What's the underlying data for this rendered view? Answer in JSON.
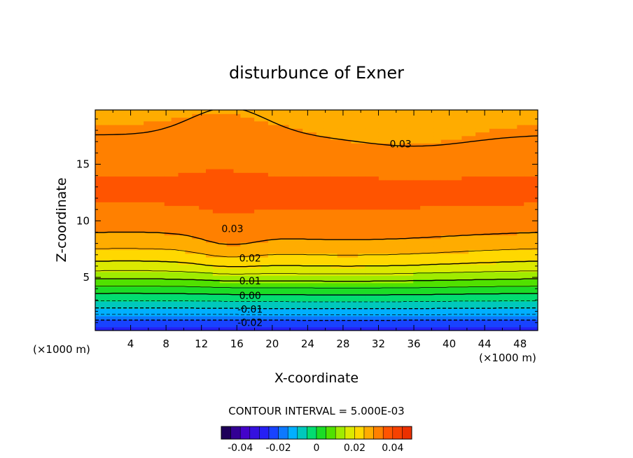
{
  "chart_data": {
    "type": "contour",
    "title": "disturbunce of Exner",
    "xlabel": "X-coordinate",
    "ylabel": "Z-coordinate",
    "x_unit_left": "(×1000 m)",
    "x_unit_right": "(×1000 m)",
    "xlim": [
      0,
      50
    ],
    "ylim": [
      0.3,
      19.8
    ],
    "x_ticks": [
      4,
      8,
      12,
      16,
      20,
      24,
      28,
      32,
      36,
      40,
      44,
      48
    ],
    "y_ticks": [
      5,
      10,
      15
    ],
    "contour_interval_text": "CONTOUR INTERVAL = 5.000E-03",
    "contour_interval": 0.005,
    "colorbar": {
      "range": [
        -0.05,
        0.05
      ],
      "tick_values": [
        -0.04,
        -0.02,
        0,
        0.02,
        0.04
      ],
      "tick_labels": [
        "-0.04",
        "-0.02",
        "0",
        "0.02",
        "0.04"
      ]
    },
    "contour_labels": [
      {
        "text": "0.03",
        "x": 34.5,
        "z": 16.8
      },
      {
        "text": "0.03",
        "x": 15.5,
        "z": 9.3
      },
      {
        "text": "0.02",
        "x": 17.5,
        "z": 6.7
      },
      {
        "text": "0.01",
        "x": 17.5,
        "z": 4.7
      },
      {
        "text": "0.00",
        "x": 17.5,
        "z": 3.4
      },
      {
        "text": "-0.01",
        "x": 17.5,
        "z": 2.2
      },
      {
        "text": "-0.02",
        "x": 17.5,
        "z": 1.0
      }
    ],
    "contour_levels_shown": [
      0.03,
      0.025,
      0.02,
      0.015,
      0.01,
      0.005,
      0.0,
      -0.005,
      -0.01,
      -0.015,
      -0.02
    ],
    "field_profile": {
      "description_z_km": [
        0.3,
        1,
        2,
        3,
        4,
        5,
        6,
        7,
        8,
        9,
        10,
        12,
        14,
        16,
        18,
        19.8
      ],
      "value_at_x0": [
        -0.03,
        -0.022,
        -0.012,
        -0.004,
        0.004,
        0.012,
        0.019,
        0.024,
        0.028,
        0.031,
        0.033,
        0.036,
        0.035,
        0.033,
        0.031,
        0.028
      ]
    }
  }
}
